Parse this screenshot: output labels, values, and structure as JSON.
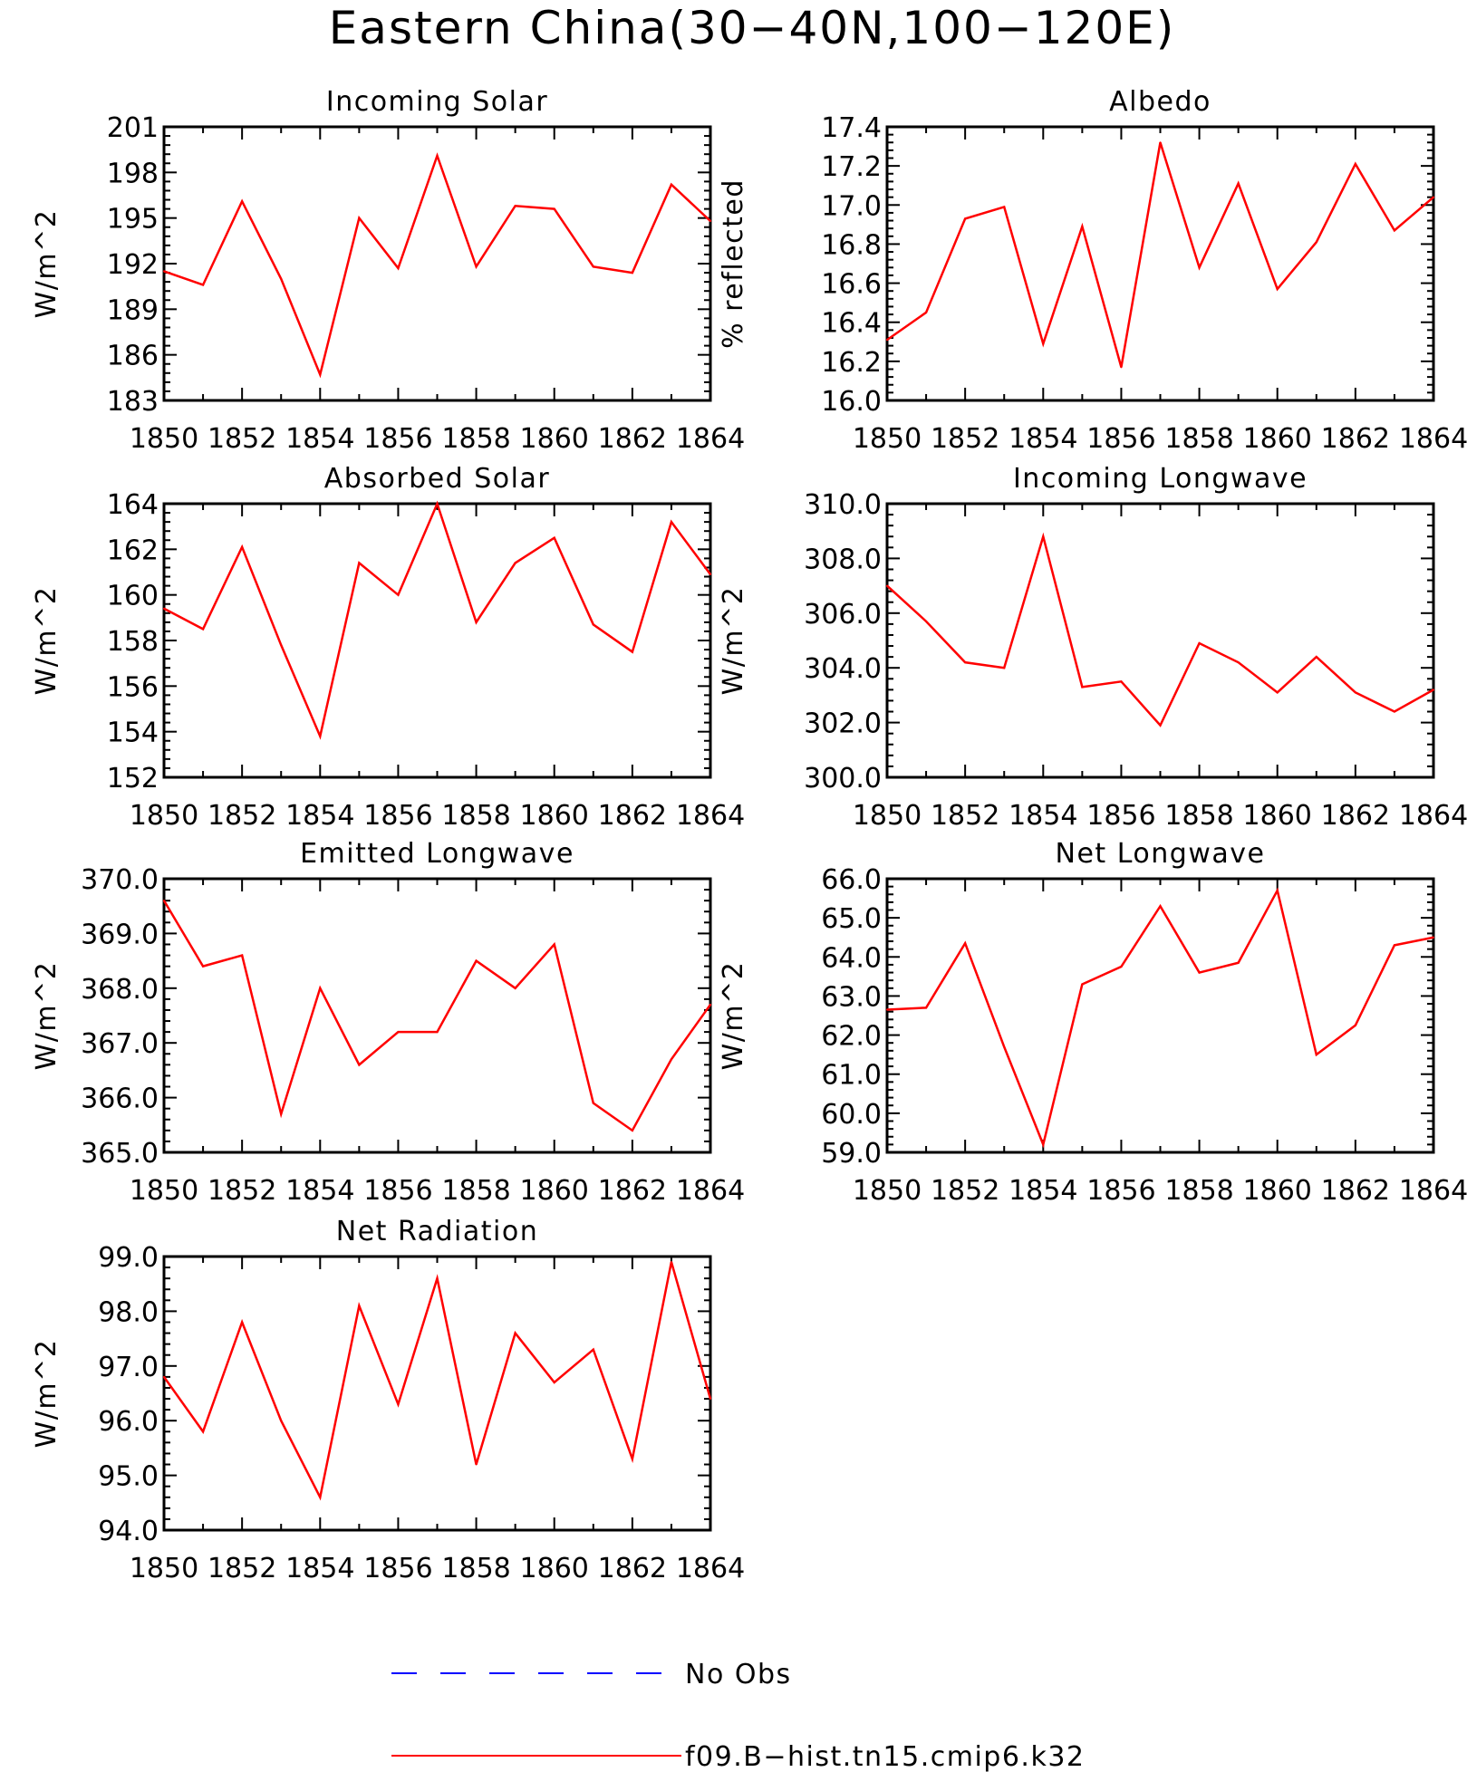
{
  "figure": {
    "title": "Eastern China(30−40N,100−120E)",
    "legend": [
      {
        "label": "No Obs",
        "color": "#0000ff",
        "style": "dashed"
      },
      {
        "label": "f09.B−hist.tn15.cmip6.k32",
        "color": "#ff0000",
        "style": "solid"
      }
    ]
  },
  "chart_data": [
    {
      "type": "line",
      "title": "Incoming Solar",
      "ylabel": "W/m^2",
      "xlim": [
        1850,
        1864
      ],
      "ylim": [
        183,
        201
      ],
      "xticks": [
        1850,
        1852,
        1854,
        1856,
        1858,
        1860,
        1862,
        1864
      ],
      "yticks": [
        "183",
        "186",
        "189",
        "192",
        "195",
        "198",
        "201"
      ],
      "series": [
        {
          "color": "#ff0000",
          "x": [
            1850,
            1851,
            1852,
            1853,
            1854,
            1855,
            1856,
            1857,
            1858,
            1859,
            1860,
            1861,
            1862,
            1863,
            1864
          ],
          "y": [
            191.5,
            190.6,
            196.1,
            191.0,
            184.7,
            195.0,
            191.7,
            199.1,
            191.8,
            195.8,
            195.6,
            191.8,
            191.4,
            197.2,
            194.8
          ]
        }
      ]
    },
    {
      "type": "line",
      "title": "Albedo",
      "ylabel": "% reflected",
      "xlim": [
        1850,
        1864
      ],
      "ylim": [
        16.0,
        17.4
      ],
      "xticks": [
        1850,
        1852,
        1854,
        1856,
        1858,
        1860,
        1862,
        1864
      ],
      "yticks": [
        "16.0",
        "16.2",
        "16.4",
        "16.6",
        "16.8",
        "17.0",
        "17.2",
        "17.4"
      ],
      "series": [
        {
          "color": "#ff0000",
          "x": [
            1850,
            1851,
            1852,
            1853,
            1854,
            1855,
            1856,
            1857,
            1858,
            1859,
            1860,
            1861,
            1862,
            1863,
            1864
          ],
          "y": [
            16.31,
            16.45,
            16.93,
            16.99,
            16.29,
            16.89,
            16.17,
            17.32,
            16.68,
            17.11,
            16.57,
            16.81,
            17.21,
            16.87,
            17.04
          ]
        }
      ]
    },
    {
      "type": "line",
      "title": "Absorbed Solar",
      "ylabel": "W/m^2",
      "xlim": [
        1850,
        1864
      ],
      "ylim": [
        152,
        164
      ],
      "xticks": [
        1850,
        1852,
        1854,
        1856,
        1858,
        1860,
        1862,
        1864
      ],
      "yticks": [
        "152",
        "154",
        "156",
        "158",
        "160",
        "162",
        "164"
      ],
      "series": [
        {
          "color": "#ff0000",
          "x": [
            1850,
            1851,
            1852,
            1853,
            1854,
            1855,
            1856,
            1857,
            1858,
            1859,
            1860,
            1861,
            1862,
            1863,
            1864
          ],
          "y": [
            159.4,
            158.5,
            162.1,
            157.8,
            153.8,
            161.4,
            160.0,
            164.0,
            158.8,
            161.4,
            162.5,
            158.7,
            157.5,
            163.2,
            160.9
          ]
        }
      ]
    },
    {
      "type": "line",
      "title": "Incoming Longwave",
      "ylabel": "W/m^2",
      "xlim": [
        1850,
        1864
      ],
      "ylim": [
        300.0,
        310.0
      ],
      "xticks": [
        1850,
        1852,
        1854,
        1856,
        1858,
        1860,
        1862,
        1864
      ],
      "yticks": [
        "300.0",
        "302.0",
        "304.0",
        "306.0",
        "308.0",
        "310.0"
      ],
      "series": [
        {
          "color": "#ff0000",
          "x": [
            1850,
            1851,
            1852,
            1853,
            1854,
            1855,
            1856,
            1857,
            1858,
            1859,
            1860,
            1861,
            1862,
            1863,
            1864
          ],
          "y": [
            307.0,
            305.7,
            304.2,
            304.0,
            308.8,
            303.3,
            303.5,
            301.9,
            304.9,
            304.2,
            303.1,
            304.4,
            303.1,
            302.4,
            303.2
          ]
        }
      ]
    },
    {
      "type": "line",
      "title": "Emitted Longwave",
      "ylabel": "W/m^2",
      "xlim": [
        1850,
        1864
      ],
      "ylim": [
        365.0,
        370.0
      ],
      "xticks": [
        1850,
        1852,
        1854,
        1856,
        1858,
        1860,
        1862,
        1864
      ],
      "yticks": [
        "365.0",
        "366.0",
        "367.0",
        "368.0",
        "369.0",
        "370.0"
      ],
      "series": [
        {
          "color": "#ff0000",
          "x": [
            1850,
            1851,
            1852,
            1853,
            1854,
            1855,
            1856,
            1857,
            1858,
            1859,
            1860,
            1861,
            1862,
            1863,
            1864
          ],
          "y": [
            369.6,
            368.4,
            368.6,
            365.7,
            368.0,
            366.6,
            367.2,
            367.2,
            368.5,
            368.0,
            368.8,
            365.9,
            365.4,
            366.7,
            367.7
          ]
        }
      ]
    },
    {
      "type": "line",
      "title": "Net Longwave",
      "ylabel": "W/m^2",
      "xlim": [
        1850,
        1864
      ],
      "ylim": [
        59.0,
        66.0
      ],
      "xticks": [
        1850,
        1852,
        1854,
        1856,
        1858,
        1860,
        1862,
        1864
      ],
      "yticks": [
        "59.0",
        "60.0",
        "61.0",
        "62.0",
        "63.0",
        "64.0",
        "65.0",
        "66.0"
      ],
      "series": [
        {
          "color": "#ff0000",
          "x": [
            1850,
            1851,
            1852,
            1853,
            1854,
            1855,
            1856,
            1857,
            1858,
            1859,
            1860,
            1861,
            1862,
            1863,
            1864
          ],
          "y": [
            62.65,
            62.7,
            64.35,
            61.7,
            59.2,
            63.3,
            63.75,
            65.3,
            63.6,
            63.85,
            65.7,
            61.5,
            62.25,
            64.3,
            64.5
          ]
        }
      ]
    },
    {
      "type": "line",
      "title": "Net Radiation",
      "ylabel": "W/m^2",
      "xlim": [
        1850,
        1864
      ],
      "ylim": [
        94.0,
        99.0
      ],
      "xticks": [
        1850,
        1852,
        1854,
        1856,
        1858,
        1860,
        1862,
        1864
      ],
      "yticks": [
        "94.0",
        "95.0",
        "96.0",
        "97.0",
        "98.0",
        "99.0"
      ],
      "series": [
        {
          "color": "#ff0000",
          "x": [
            1850,
            1851,
            1852,
            1853,
            1854,
            1855,
            1856,
            1857,
            1858,
            1859,
            1860,
            1861,
            1862,
            1863,
            1864
          ],
          "y": [
            96.8,
            95.8,
            97.8,
            96.0,
            94.6,
            98.1,
            96.3,
            98.6,
            95.2,
            97.6,
            96.7,
            97.3,
            95.3,
            98.9,
            96.4
          ]
        }
      ]
    }
  ]
}
